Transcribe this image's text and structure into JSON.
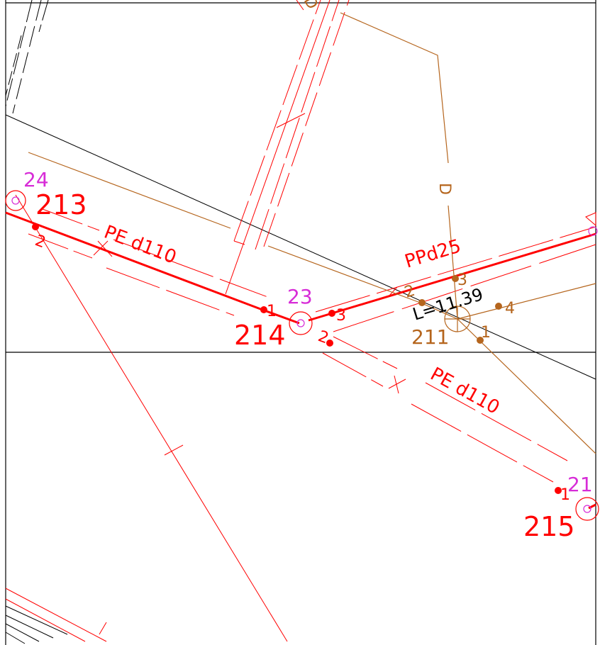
{
  "colors": {
    "background": "#ffffff",
    "frame": "#000000",
    "pipe_red": "#ff0000",
    "node_magenta": "#d72cd7",
    "branch_brown": "#b5651d"
  },
  "labels": {
    "node_24": "24",
    "node_23": "23",
    "node_21": "21",
    "id_213": "213",
    "id_214": "214",
    "id_215": "215",
    "id_211": "211",
    "pt_2_left": "2",
    "pt_1_mid": "1",
    "pt_3_red": "3",
    "pt_2_red": "2",
    "pt_1_right": "1",
    "pt_2_brown": "2",
    "pt_3_brown": "3",
    "pt_4_brown": "4",
    "pt_1_brown": "1",
    "pipe_pe_left": "PE d110",
    "pipe_pe_right": "PE d110",
    "pipe_ppd25": "PPd25",
    "length_dim": "L=11.39",
    "marker_d": "D"
  }
}
